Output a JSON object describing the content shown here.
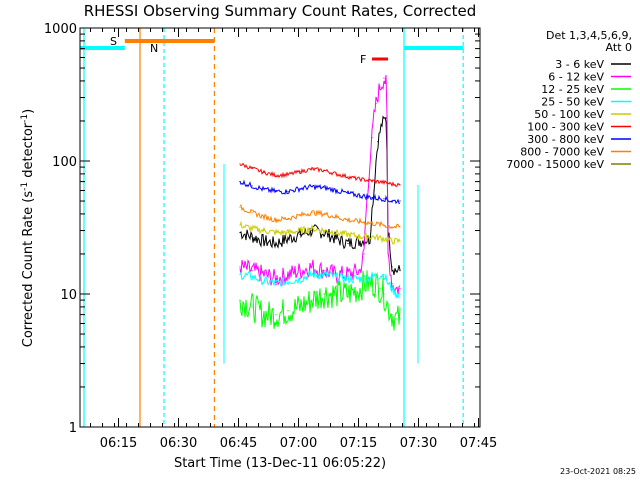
{
  "chart_data": {
    "type": "line",
    "title": "RHESSI Observing Summary Count Rates, Corrected",
    "xlabel": "Start Time (13-Dec-11 06:05:22)",
    "ylabel": "Corrected Count Rate (s⁻¹ detector⁻¹)",
    "ylabel_main": "Corrected Count Rate (s",
    "ylabel_sup1": "-1",
    "ylabel_mid": " detector",
    "ylabel_sup2": "-1",
    "ylabel_end": ")",
    "yscale": "log",
    "ylim": [
      1,
      1000
    ],
    "xlim_minutes": [
      0,
      100
    ],
    "x_ticks": [
      "06:15",
      "06:30",
      "06:45",
      "07:00",
      "07:15",
      "07:30",
      "07:45"
    ],
    "x_tick_minutes": [
      9.63,
      24.63,
      39.63,
      54.63,
      69.63,
      84.63,
      99.63
    ],
    "y_ticks": [
      "1",
      "10",
      "100",
      "1000"
    ],
    "y_tick_values": [
      1,
      10,
      100,
      1000
    ],
    "grid": false,
    "legend_header": [
      "Det 1,3,4,5,6,9,",
      "Att 0"
    ],
    "legend_position": "right",
    "footer_date": "23-Oct-2021 08:25",
    "series": [
      {
        "name": "3 - 6 keV",
        "color": "#000000",
        "x": [
          40,
          43,
          46,
          49,
          52,
          55,
          58,
          61,
          64,
          67,
          70,
          72.5,
          73.5,
          74.5,
          75.5,
          76.5,
          77,
          78,
          79,
          80
        ],
        "y": [
          29,
          27,
          25,
          24,
          26,
          28,
          30,
          29,
          26,
          24,
          25,
          26,
          60,
          140,
          190,
          210,
          30,
          16,
          15,
          15
        ]
      },
      {
        "name": "6 - 12 keV",
        "color": "#ff00ff",
        "x": [
          40,
          43,
          46,
          49,
          52,
          55,
          58,
          61,
          64,
          67,
          70,
          71,
          72,
          73,
          74,
          75,
          76,
          76.5,
          77,
          78,
          79,
          80
        ],
        "y": [
          16,
          15,
          14,
          13,
          14,
          15,
          16,
          15,
          14,
          14,
          15,
          20,
          60,
          150,
          270,
          360,
          420,
          380,
          20,
          12,
          11,
          11
        ]
      },
      {
        "name": "12 - 25 keV",
        "color": "#00ff00",
        "x": [
          40,
          43,
          46,
          49,
          52,
          55,
          58,
          61,
          64,
          67,
          70,
          71,
          72,
          73,
          74,
          75,
          76,
          77,
          78,
          79,
          80
        ],
        "y": [
          9,
          8,
          7,
          7,
          7.5,
          8,
          9,
          10,
          10,
          10,
          11,
          12,
          12,
          12,
          12,
          11,
          10,
          8,
          7,
          6.5,
          6.5
        ]
      },
      {
        "name": "25 - 50 keV",
        "color": "#00ffff",
        "x": [
          40,
          43,
          46,
          49,
          52,
          55,
          58,
          61,
          64,
          67,
          70,
          73,
          76,
          77,
          78,
          79,
          80
        ],
        "y": [
          14,
          13.5,
          12.5,
          12,
          12.5,
          13,
          14,
          14,
          13.5,
          13,
          13,
          13.5,
          14,
          12,
          11,
          10,
          10
        ]
      },
      {
        "name": "50 - 100 keV",
        "color": "#cccc00",
        "x": [
          40,
          43,
          46,
          49,
          52,
          55,
          58,
          61,
          64,
          67,
          70,
          73,
          76,
          78,
          80
        ],
        "y": [
          33,
          31,
          30,
          29,
          29,
          30,
          31,
          30,
          29,
          28,
          27,
          27,
          26,
          25,
          25
        ]
      },
      {
        "name": "100 - 300 keV",
        "color": "#ff0000",
        "x": [
          40,
          43,
          46,
          49,
          52,
          55,
          58,
          61,
          64,
          67,
          70,
          73,
          76,
          78,
          80
        ],
        "y": [
          95,
          88,
          82,
          78,
          79,
          83,
          87,
          85,
          80,
          76,
          73,
          71,
          69,
          67,
          66
        ]
      },
      {
        "name": "300 - 800 keV",
        "color": "#0000ff",
        "x": [
          40,
          43,
          46,
          49,
          52,
          55,
          58,
          61,
          64,
          67,
          70,
          73,
          76,
          78,
          80
        ],
        "y": [
          70,
          65,
          61,
          59,
          59,
          62,
          64,
          63,
          60,
          57,
          55,
          53,
          52,
          50,
          50
        ]
      },
      {
        "name": "800 - 7000 keV",
        "color": "#ff8000",
        "x": [
          40,
          43,
          46,
          49,
          52,
          55,
          58,
          61,
          64,
          67,
          70,
          73,
          76,
          78,
          80
        ],
        "y": [
          45,
          41,
          38,
          36,
          37,
          39,
          41,
          40,
          38,
          36,
          35,
          34,
          33,
          32,
          32
        ]
      },
      {
        "name": "7000 - 15000 keV",
        "color": "#808000",
        "x": [],
        "y": []
      }
    ],
    "markers": {
      "N_label": "N",
      "S_label": "S",
      "F_label": "F",
      "N_color": "#00ffff",
      "S_color": "#ff8000",
      "F_color": "#ff0000"
    }
  }
}
